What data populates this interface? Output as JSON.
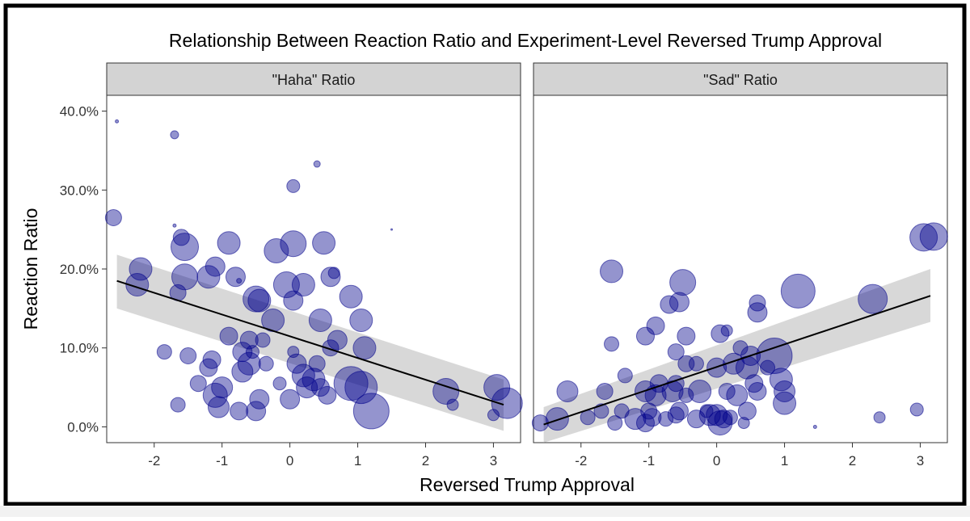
{
  "chart_data": {
    "type": "scatter",
    "title": "Relationship Between Reaction Ratio and Experiment-Level Reversed Trump Approval",
    "xlabel": "Reversed Trump Approval",
    "ylabel": "Reaction Ratio",
    "xlim": [
      -2.7,
      3.4
    ],
    "ylim": [
      -0.02,
      0.42
    ],
    "x_ticks": [
      -2,
      -1,
      0,
      1,
      2,
      3
    ],
    "x_tick_labels": [
      "-2",
      "-1",
      "0",
      "1",
      "2",
      "3"
    ],
    "y_ticks": [
      0,
      0.1,
      0.2,
      0.3,
      0.4
    ],
    "y_tick_labels": [
      "0.0%",
      "10.0%",
      "20.0%",
      "30.0%",
      "40.0%"
    ],
    "point_color": "#00008b",
    "band_color": "#bebebe",
    "grid": false,
    "legend": "none",
    "panels": [
      {
        "label": "\"Haha\" Ratio",
        "fit": {
          "x": [
            -2.55,
            3.15
          ],
          "y": [
            0.185,
            0.028
          ],
          "band_lo": [
            0.15,
            -0.005
          ],
          "band_hi": [
            0.218,
            0.06
          ]
        },
        "points": [
          {
            "x": -2.55,
            "y": 0.387,
            "size": 2
          },
          {
            "x": -1.7,
            "y": 0.37,
            "size": 5
          },
          {
            "x": 0.4,
            "y": 0.333,
            "size": 4
          },
          {
            "x": 0.05,
            "y": 0.305,
            "size": 8
          },
          {
            "x": -2.6,
            "y": 0.265,
            "size": 10
          },
          {
            "x": -1.7,
            "y": 0.255,
            "size": 2
          },
          {
            "x": 1.5,
            "y": 0.25,
            "size": 1
          },
          {
            "x": -1.6,
            "y": 0.24,
            "size": 10
          },
          {
            "x": -1.55,
            "y": 0.228,
            "size": 17
          },
          {
            "x": -0.9,
            "y": 0.233,
            "size": 14
          },
          {
            "x": 0.05,
            "y": 0.232,
            "size": 16
          },
          {
            "x": 0.5,
            "y": 0.233,
            "size": 14
          },
          {
            "x": -0.2,
            "y": 0.223,
            "size": 15
          },
          {
            "x": -2.2,
            "y": 0.2,
            "size": 14
          },
          {
            "x": -1.1,
            "y": 0.203,
            "size": 12
          },
          {
            "x": -2.25,
            "y": 0.18,
            "size": 14
          },
          {
            "x": -1.55,
            "y": 0.19,
            "size": 16
          },
          {
            "x": -1.2,
            "y": 0.19,
            "size": 14
          },
          {
            "x": -0.8,
            "y": 0.19,
            "size": 12
          },
          {
            "x": -0.75,
            "y": 0.185,
            "size": 3
          },
          {
            "x": 0.6,
            "y": 0.19,
            "size": 12
          },
          {
            "x": 0.65,
            "y": 0.195,
            "size": 7
          },
          {
            "x": -0.05,
            "y": 0.18,
            "size": 16
          },
          {
            "x": 0.2,
            "y": 0.18,
            "size": 14
          },
          {
            "x": -1.65,
            "y": 0.17,
            "size": 10
          },
          {
            "x": -0.5,
            "y": 0.162,
            "size": 16
          },
          {
            "x": -0.45,
            "y": 0.16,
            "size": 14
          },
          {
            "x": 0.9,
            "y": 0.165,
            "size": 14
          },
          {
            "x": 0.05,
            "y": 0.16,
            "size": 12
          },
          {
            "x": -0.25,
            "y": 0.135,
            "size": 14
          },
          {
            "x": 0.45,
            "y": 0.135,
            "size": 14
          },
          {
            "x": 1.05,
            "y": 0.135,
            "size": 14
          },
          {
            "x": -0.9,
            "y": 0.115,
            "size": 11
          },
          {
            "x": -0.6,
            "y": 0.11,
            "size": 11
          },
          {
            "x": -0.4,
            "y": 0.11,
            "size": 9
          },
          {
            "x": 0.6,
            "y": 0.1,
            "size": 10
          },
          {
            "x": 0.7,
            "y": 0.11,
            "size": 12
          },
          {
            "x": -0.7,
            "y": 0.095,
            "size": 12
          },
          {
            "x": -0.55,
            "y": 0.095,
            "size": 8
          },
          {
            "x": 0.05,
            "y": 0.095,
            "size": 7
          },
          {
            "x": 1.1,
            "y": 0.1,
            "size": 14
          },
          {
            "x": -1.85,
            "y": 0.095,
            "size": 9
          },
          {
            "x": -1.5,
            "y": 0.09,
            "size": 10
          },
          {
            "x": -1.15,
            "y": 0.085,
            "size": 11
          },
          {
            "x": -0.6,
            "y": 0.08,
            "size": 14
          },
          {
            "x": -0.35,
            "y": 0.08,
            "size": 9
          },
          {
            "x": 0.1,
            "y": 0.08,
            "size": 12
          },
          {
            "x": 0.4,
            "y": 0.08,
            "size": 10
          },
          {
            "x": -1.2,
            "y": 0.075,
            "size": 11
          },
          {
            "x": -0.7,
            "y": 0.07,
            "size": 13
          },
          {
            "x": 0.2,
            "y": 0.065,
            "size": 14
          },
          {
            "x": 0.35,
            "y": 0.06,
            "size": 14
          },
          {
            "x": -1.35,
            "y": 0.055,
            "size": 10
          },
          {
            "x": -1.0,
            "y": 0.05,
            "size": 13
          },
          {
            "x": -0.15,
            "y": 0.055,
            "size": 8
          },
          {
            "x": 0.25,
            "y": 0.05,
            "size": 13
          },
          {
            "x": 0.45,
            "y": 0.05,
            "size": 11
          },
          {
            "x": 0.9,
            "y": 0.055,
            "size": 21
          },
          {
            "x": 1.05,
            "y": 0.05,
            "size": 20
          },
          {
            "x": -1.1,
            "y": 0.04,
            "size": 15
          },
          {
            "x": -0.45,
            "y": 0.035,
            "size": 12
          },
          {
            "x": 0.0,
            "y": 0.035,
            "size": 12
          },
          {
            "x": 0.55,
            "y": 0.04,
            "size": 11
          },
          {
            "x": 2.3,
            "y": 0.045,
            "size": 16
          },
          {
            "x": 3.05,
            "y": 0.05,
            "size": 16
          },
          {
            "x": -1.65,
            "y": 0.028,
            "size": 9
          },
          {
            "x": -1.05,
            "y": 0.025,
            "size": 13
          },
          {
            "x": -0.75,
            "y": 0.02,
            "size": 11
          },
          {
            "x": -0.5,
            "y": 0.02,
            "size": 12
          },
          {
            "x": 1.2,
            "y": 0.02,
            "size": 22
          },
          {
            "x": 2.4,
            "y": 0.028,
            "size": 7
          },
          {
            "x": 3.2,
            "y": 0.03,
            "size": 19
          },
          {
            "x": 3.0,
            "y": 0.015,
            "size": 7
          }
        ]
      },
      {
        "label": "\"Sad\" Ratio",
        "fit": {
          "x": [
            -2.55,
            3.15
          ],
          "y": [
            0.003,
            0.166
          ],
          "band_lo": [
            -0.02,
            0.133
          ],
          "band_hi": [
            0.025,
            0.2
          ]
        },
        "points": [
          {
            "x": -1.55,
            "y": 0.197,
            "size": 14
          },
          {
            "x": -0.5,
            "y": 0.183,
            "size": 16
          },
          {
            "x": 1.2,
            "y": 0.172,
            "size": 21
          },
          {
            "x": 2.3,
            "y": 0.162,
            "size": 18
          },
          {
            "x": 0.6,
            "y": 0.157,
            "size": 10
          },
          {
            "x": -0.7,
            "y": 0.155,
            "size": 11
          },
          {
            "x": -0.55,
            "y": 0.158,
            "size": 12
          },
          {
            "x": 0.6,
            "y": 0.145,
            "size": 12
          },
          {
            "x": 3.05,
            "y": 0.24,
            "size": 17
          },
          {
            "x": 3.2,
            "y": 0.241,
            "size": 17
          },
          {
            "x": -0.9,
            "y": 0.128,
            "size": 11
          },
          {
            "x": -1.05,
            "y": 0.115,
            "size": 11
          },
          {
            "x": -0.45,
            "y": 0.115,
            "size": 11
          },
          {
            "x": 0.05,
            "y": 0.118,
            "size": 11
          },
          {
            "x": 0.15,
            "y": 0.122,
            "size": 7
          },
          {
            "x": -1.55,
            "y": 0.105,
            "size": 9
          },
          {
            "x": -0.6,
            "y": 0.095,
            "size": 10
          },
          {
            "x": 0.35,
            "y": 0.1,
            "size": 9
          },
          {
            "x": 0.5,
            "y": 0.09,
            "size": 12
          },
          {
            "x": 0.85,
            "y": 0.09,
            "size": 22
          },
          {
            "x": -0.45,
            "y": 0.08,
            "size": 10
          },
          {
            "x": -0.3,
            "y": 0.08,
            "size": 9
          },
          {
            "x": 0.0,
            "y": 0.075,
            "size": 12
          },
          {
            "x": 0.25,
            "y": 0.08,
            "size": 13
          },
          {
            "x": 0.45,
            "y": 0.075,
            "size": 14
          },
          {
            "x": 0.75,
            "y": 0.075,
            "size": 9
          },
          {
            "x": -1.35,
            "y": 0.065,
            "size": 9
          },
          {
            "x": -0.85,
            "y": 0.055,
            "size": 11
          },
          {
            "x": -0.6,
            "y": 0.055,
            "size": 10
          },
          {
            "x": 0.55,
            "y": 0.055,
            "size": 11
          },
          {
            "x": 0.95,
            "y": 0.06,
            "size": 14
          },
          {
            "x": -2.2,
            "y": 0.045,
            "size": 13
          },
          {
            "x": -1.65,
            "y": 0.045,
            "size": 10
          },
          {
            "x": -1.05,
            "y": 0.045,
            "size": 13
          },
          {
            "x": -0.65,
            "y": 0.045,
            "size": 13
          },
          {
            "x": -0.25,
            "y": 0.045,
            "size": 14
          },
          {
            "x": 0.15,
            "y": 0.045,
            "size": 10
          },
          {
            "x": 0.3,
            "y": 0.04,
            "size": 13
          },
          {
            "x": 0.6,
            "y": 0.045,
            "size": 11
          },
          {
            "x": 1.0,
            "y": 0.045,
            "size": 13
          },
          {
            "x": -0.9,
            "y": 0.04,
            "size": 13
          },
          {
            "x": -0.45,
            "y": 0.04,
            "size": 9
          },
          {
            "x": -1.7,
            "y": 0.02,
            "size": 9
          },
          {
            "x": -1.4,
            "y": 0.02,
            "size": 9
          },
          {
            "x": -1.0,
            "y": 0.02,
            "size": 10
          },
          {
            "x": -0.55,
            "y": 0.02,
            "size": 11
          },
          {
            "x": 0.45,
            "y": 0.02,
            "size": 11
          },
          {
            "x": 1.0,
            "y": 0.03,
            "size": 14
          },
          {
            "x": -2.35,
            "y": 0.01,
            "size": 14
          },
          {
            "x": -1.5,
            "y": 0.005,
            "size": 9
          },
          {
            "x": -1.2,
            "y": 0.01,
            "size": 13
          },
          {
            "x": -0.95,
            "y": 0.012,
            "size": 11
          },
          {
            "x": -0.6,
            "y": 0.015,
            "size": 10
          },
          {
            "x": -0.3,
            "y": 0.01,
            "size": 11
          },
          {
            "x": -0.1,
            "y": 0.015,
            "size": 13
          },
          {
            "x": 0.0,
            "y": 0.015,
            "size": 13
          },
          {
            "x": 0.1,
            "y": 0.01,
            "size": 11
          },
          {
            "x": 0.2,
            "y": 0.012,
            "size": 9
          },
          {
            "x": 0.4,
            "y": 0.005,
            "size": 7
          },
          {
            "x": -2.6,
            "y": 0.005,
            "size": 10
          },
          {
            "x": -1.9,
            "y": 0.012,
            "size": 9
          },
          {
            "x": -1.05,
            "y": 0.005,
            "size": 11
          },
          {
            "x": -0.75,
            "y": 0.01,
            "size": 9
          },
          {
            "x": 2.4,
            "y": 0.012,
            "size": 7
          },
          {
            "x": 2.95,
            "y": 0.022,
            "size": 8
          },
          {
            "x": 1.45,
            "y": 0.0,
            "size": 2
          },
          {
            "x": 0.05,
            "y": 0.005,
            "size": 15
          },
          {
            "x": -0.15,
            "y": 0.02,
            "size": 8
          }
        ]
      }
    ]
  }
}
